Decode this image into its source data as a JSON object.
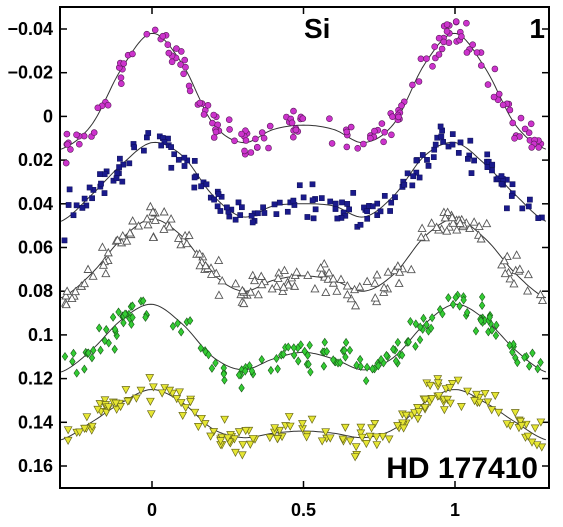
{
  "chart_data": {
    "type": "scatter",
    "title": "",
    "xlabel": "",
    "ylabel": "",
    "xlim": [
      -0.3,
      1.3
    ],
    "ylim": [
      0.17,
      -0.05
    ],
    "y_axis_inverted": true,
    "grid": false,
    "legend": "none",
    "x_ticks": [
      0,
      0.5,
      1
    ],
    "x_tick_labels": [
      "0",
      "0.5",
      "1"
    ],
    "y_ticks": [
      -0.04,
      -0.02,
      0,
      0.02,
      0.04,
      0.06,
      0.08,
      0.1,
      0.12,
      0.14,
      0.16
    ],
    "y_tick_labels": [
      "−0.04",
      "−0.02",
      "0",
      "0.02",
      "0.04",
      "0.06",
      "0.08",
      "0.1",
      "0.12",
      "0.14",
      "0.16"
    ],
    "annotations": {
      "element": "Si",
      "panel": "1",
      "star": "HD 177410"
    },
    "model_curve": {
      "description_note": "",
      "phase": [
        -0.3,
        -0.2,
        -0.1,
        0.0,
        0.1,
        0.2,
        0.3,
        0.4,
        0.5,
        0.6,
        0.7,
        0.8,
        0.9,
        1.0,
        1.1,
        1.2,
        1.3
      ]
    },
    "series": [
      {
        "marker": "circle",
        "color": "#cc33cc",
        "phase": [
          -0.3,
          -0.2,
          -0.1,
          0.0,
          0.1,
          0.2,
          0.3,
          0.4,
          0.5,
          0.6,
          0.7,
          0.8,
          0.9,
          1.0,
          1.1,
          1.2,
          1.3
        ],
        "fit": [
          0.015,
          0.004,
          -0.022,
          -0.038,
          -0.024,
          0.003,
          0.012,
          0.006,
          0.004,
          0.006,
          0.012,
          0.003,
          -0.024,
          -0.038,
          -0.022,
          0.004,
          0.015
        ]
      },
      {
        "marker": "square",
        "color": "#1a1a8c",
        "phase": [
          -0.3,
          -0.2,
          -0.1,
          0.0,
          0.1,
          0.2,
          0.3,
          0.4,
          0.5,
          0.6,
          0.7,
          0.8,
          0.9,
          1.0,
          1.1,
          1.2,
          1.3
        ],
        "fit": [
          0.048,
          0.036,
          0.022,
          0.012,
          0.018,
          0.036,
          0.046,
          0.041,
          0.04,
          0.041,
          0.046,
          0.036,
          0.018,
          0.012,
          0.022,
          0.036,
          0.048
        ]
      },
      {
        "marker": "triangle-up",
        "color": "#888888",
        "phase": [
          -0.3,
          -0.2,
          -0.1,
          0.0,
          0.1,
          0.2,
          0.3,
          0.4,
          0.5,
          0.6,
          0.7,
          0.8,
          0.9,
          1.0,
          1.1,
          1.2,
          1.3
        ],
        "fit": [
          0.083,
          0.072,
          0.056,
          0.047,
          0.055,
          0.072,
          0.08,
          0.075,
          0.073,
          0.075,
          0.08,
          0.072,
          0.055,
          0.047,
          0.056,
          0.072,
          0.083
        ]
      },
      {
        "marker": "diamond",
        "color": "#33cc33",
        "phase": [
          -0.3,
          -0.2,
          -0.1,
          0.0,
          0.1,
          0.2,
          0.3,
          0.4,
          0.5,
          0.6,
          0.7,
          0.8,
          0.9,
          1.0,
          1.1,
          1.2,
          1.3
        ],
        "fit": [
          0.117,
          0.107,
          0.093,
          0.086,
          0.095,
          0.11,
          0.116,
          0.111,
          0.108,
          0.111,
          0.116,
          0.11,
          0.095,
          0.086,
          0.093,
          0.107,
          0.117
        ]
      },
      {
        "marker": "triangle-down",
        "color": "#e6e633",
        "phase": [
          -0.3,
          -0.2,
          -0.1,
          0.0,
          0.1,
          0.2,
          0.3,
          0.4,
          0.5,
          0.6,
          0.7,
          0.8,
          0.9,
          1.0,
          1.1,
          1.2,
          1.3
        ],
        "fit": [
          0.148,
          0.14,
          0.131,
          0.125,
          0.131,
          0.143,
          0.147,
          0.145,
          0.144,
          0.145,
          0.147,
          0.143,
          0.131,
          0.125,
          0.131,
          0.14,
          0.148
        ]
      }
    ]
  }
}
